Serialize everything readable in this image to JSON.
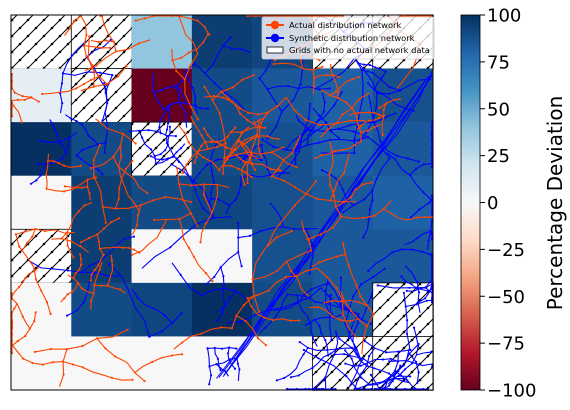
{
  "chart_data": {
    "type": "heatmap",
    "title": "",
    "legend": {
      "placement": "top-right",
      "entries": [
        {
          "label": "Actual distribution network",
          "color": "#ff4500",
          "marker": "circle-line"
        },
        {
          "label": "Synthetic distribution network",
          "color": "#0000ff",
          "marker": "circle-line"
        },
        {
          "label": "Grids with no actual network data",
          "color": "#ffffff",
          "marker": "rect"
        }
      ]
    },
    "colorbar": {
      "label": "Percentage Deviation",
      "range": [
        -100,
        100
      ],
      "ticks": [
        "100",
        "75",
        "50",
        "25",
        "0",
        "−25",
        "−50",
        "−75",
        "−100"
      ],
      "colormap": "RdBu"
    },
    "grid": {
      "rows": 7,
      "cols": 7,
      "values": [
        [
          null,
          null,
          40,
          95,
          92,
          null,
          null
        ],
        [
          10,
          null,
          -100,
          90,
          85,
          82,
          88
        ],
        [
          100,
          90,
          null,
          90,
          88,
          82,
          85
        ],
        [
          0,
          95,
          90,
          92,
          88,
          85,
          82
        ],
        [
          null,
          95,
          0,
          0,
          88,
          85,
          85
        ],
        [
          0,
          90,
          92,
          100,
          90,
          85,
          null
        ],
        [
          0,
          0,
          0,
          0,
          0,
          null,
          null
        ]
      ]
    },
    "networks": [
      {
        "name": "Actual distribution network",
        "color": "#ff4500"
      },
      {
        "name": "Synthetic distribution network",
        "color": "#0000ff"
      }
    ]
  }
}
